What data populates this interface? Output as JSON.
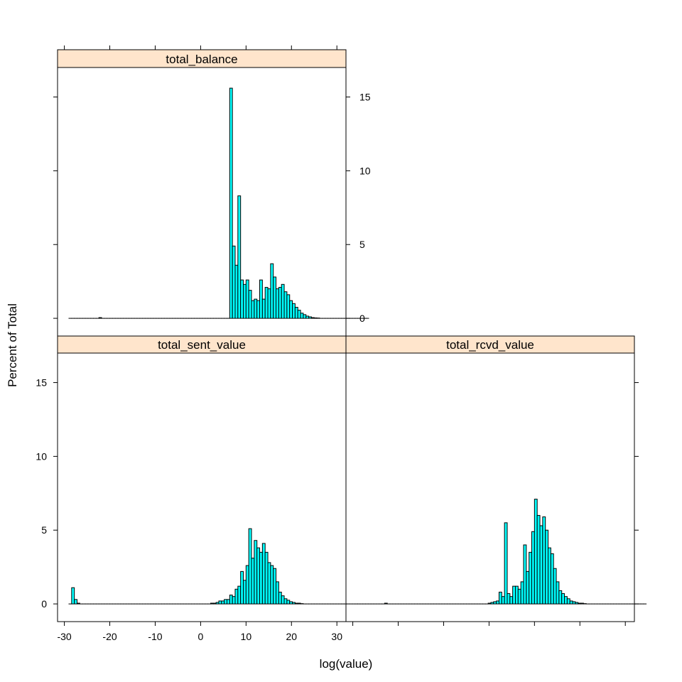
{
  "figure": {
    "xlabel": "log(value)",
    "ylabel": "Percent of Total"
  },
  "colors": {
    "bar_fill": "#00FFFF",
    "bar_stroke": "#000000",
    "strip_fill": "#FFE5CC",
    "frame": "#000000"
  },
  "chart_data": {
    "type": "histogram",
    "layout": "lattice 2x2 (total_balance top-left, total_sent_value bottom-left, total_rcvd_value bottom-right)",
    "xlabel": "log(value)",
    "ylabel": "Percent of Total",
    "xlim": [
      -31.5,
      32
    ],
    "ylim": [
      -1.2,
      17
    ],
    "x_ticks": [
      -30,
      -20,
      -10,
      0,
      10,
      20,
      30
    ],
    "y_ticks": [
      0,
      5,
      10,
      15
    ],
    "bin_start": -29,
    "bin_width": 0.6,
    "grid": false,
    "legend": "none",
    "panels": [
      {
        "name": "total_balance",
        "values": [
          0,
          0,
          0,
          0,
          0,
          0,
          0,
          0,
          0,
          0,
          0,
          0.05,
          0,
          0,
          0,
          0,
          0,
          0,
          0,
          0,
          0,
          0,
          0,
          0,
          0,
          0,
          0,
          0,
          0,
          0,
          0,
          0,
          0,
          0,
          0,
          0,
          0,
          0,
          0,
          0,
          0,
          0,
          0,
          0,
          0,
          0,
          0,
          0,
          0,
          0,
          0,
          0,
          0,
          0,
          0,
          0,
          0,
          0,
          0,
          15.6,
          4.9,
          3.6,
          8.3,
          2.6,
          2.3,
          2.6,
          1.9,
          1.2,
          1.3,
          1.2,
          2.6,
          1.3,
          2.1,
          2.0,
          3.7,
          2.8,
          2.0,
          2.1,
          2.3,
          1.8,
          1.6,
          1.2,
          1.0,
          0.75,
          0.55,
          0.35,
          0.25,
          0.15,
          0.1,
          0.05,
          0.03,
          0.02,
          0,
          0,
          0,
          0,
          0,
          0,
          0,
          0,
          0,
          0,
          0,
          0,
          0,
          0,
          0,
          0,
          0,
          0
        ]
      },
      {
        "name": "total_sent_value",
        "values": [
          0,
          1.1,
          0.3,
          0.05,
          0,
          0,
          0,
          0,
          0,
          0,
          0,
          0,
          0,
          0,
          0,
          0,
          0,
          0,
          0,
          0,
          0,
          0,
          0,
          0,
          0,
          0,
          0,
          0,
          0,
          0,
          0,
          0,
          0,
          0,
          0,
          0,
          0,
          0,
          0,
          0,
          0,
          0,
          0,
          0,
          0,
          0,
          0,
          0,
          0,
          0,
          0,
          0,
          0.05,
          0.05,
          0.1,
          0.2,
          0.2,
          0.3,
          0.3,
          0.6,
          0.5,
          1.0,
          1.2,
          2.2,
          1.6,
          2.6,
          5.1,
          3.1,
          4.3,
          3.8,
          3.5,
          4.1,
          3.5,
          2.8,
          2.6,
          2.4,
          1.5,
          0.8,
          0.55,
          0.35,
          0.25,
          0.15,
          0.1,
          0.05,
          0.05,
          0.02,
          0,
          0,
          0,
          0,
          0,
          0,
          0,
          0,
          0,
          0,
          0,
          0,
          0,
          0,
          0,
          0,
          0,
          0,
          0,
          0
        ]
      },
      {
        "name": "total_rcvd_value",
        "values": [
          0,
          0,
          0,
          0,
          0,
          0,
          0,
          0,
          0,
          0,
          0.05,
          0,
          0,
          0,
          0,
          0,
          0,
          0,
          0,
          0,
          0,
          0,
          0,
          0,
          0,
          0,
          0,
          0,
          0,
          0,
          0,
          0,
          0,
          0,
          0,
          0,
          0,
          0,
          0,
          0,
          0,
          0,
          0,
          0,
          0,
          0,
          0,
          0,
          0.05,
          0.1,
          0.15,
          0.2,
          0.8,
          0.5,
          5.5,
          0.7,
          0.5,
          1.2,
          1.2,
          1.0,
          1.5,
          4.0,
          2.2,
          3.5,
          4.9,
          7.1,
          6.0,
          5.3,
          5.9,
          5.0,
          3.8,
          3.4,
          2.4,
          1.5,
          0.9,
          0.7,
          0.5,
          0.35,
          0.2,
          0.15,
          0.1,
          0.05,
          0.05,
          0.02,
          0,
          0,
          0,
          0,
          0,
          0,
          0,
          0,
          0,
          0,
          0,
          0,
          0,
          0,
          0,
          0,
          0,
          0,
          0,
          0,
          0,
          0
        ]
      }
    ]
  }
}
